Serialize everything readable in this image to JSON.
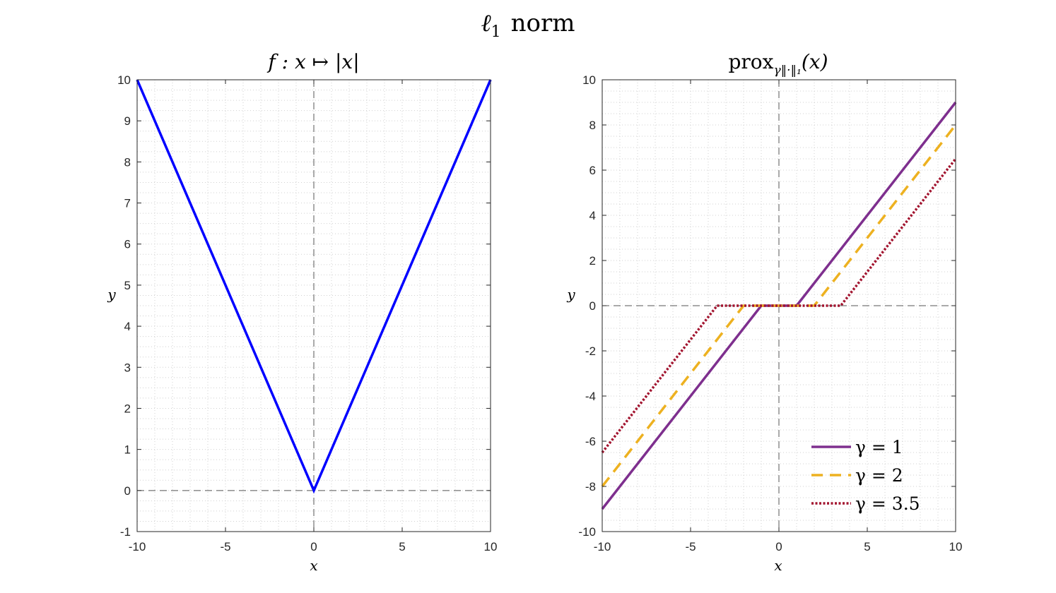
{
  "figure": {
    "suptitle_math": "ℓ",
    "suptitle_sub": "1",
    "suptitle_word": "norm"
  },
  "chart_data": [
    {
      "type": "line",
      "title": "f : x ↦ |x|",
      "xlabel": "x",
      "ylabel": "y",
      "xlim": [
        -10,
        10
      ],
      "ylim": [
        -1,
        10
      ],
      "xticks": [
        -10,
        -5,
        0,
        5,
        10
      ],
      "yticks": [
        -1,
        0,
        1,
        2,
        3,
        4,
        5,
        6,
        7,
        8,
        9,
        10
      ],
      "grid": "minor dotted",
      "reference_lines": {
        "x": 0,
        "y": 0
      },
      "series": [
        {
          "color": "#0000ff",
          "style": "solid",
          "x": [
            -10,
            0,
            10
          ],
          "y": [
            10,
            0,
            10
          ]
        }
      ]
    },
    {
      "type": "line",
      "title_parts": {
        "main": "prox",
        "subscript": "γ‖·‖₁",
        "arg": "(x)"
      },
      "xlabel": "x",
      "ylabel": "y",
      "xlim": [
        -10,
        10
      ],
      "ylim": [
        -10,
        10
      ],
      "xticks": [
        -10,
        -5,
        0,
        5,
        10
      ],
      "yticks": [
        -10,
        -8,
        -6,
        -4,
        -2,
        0,
        2,
        4,
        6,
        8,
        10
      ],
      "grid": "minor dotted",
      "legend_placement": "bottom-right",
      "reference_lines": {
        "x": 0,
        "y": 0
      },
      "series": [
        {
          "name": "γ = 1",
          "color": "#7e2f8e",
          "style": "solid",
          "x": [
            -10,
            -1,
            1,
            10
          ],
          "y": [
            -9,
            0,
            0,
            9
          ]
        },
        {
          "name": "γ = 2",
          "color": "#edb120",
          "style": "dashed",
          "x": [
            -10,
            -2,
            2,
            10
          ],
          "y": [
            -8,
            0,
            0,
            8
          ]
        },
        {
          "name": "γ = 3.5",
          "color": "#a2142f",
          "style": "dotted",
          "x": [
            -10,
            -3.5,
            3.5,
            10
          ],
          "y": [
            -6.5,
            0,
            0,
            6.5
          ]
        }
      ]
    }
  ]
}
